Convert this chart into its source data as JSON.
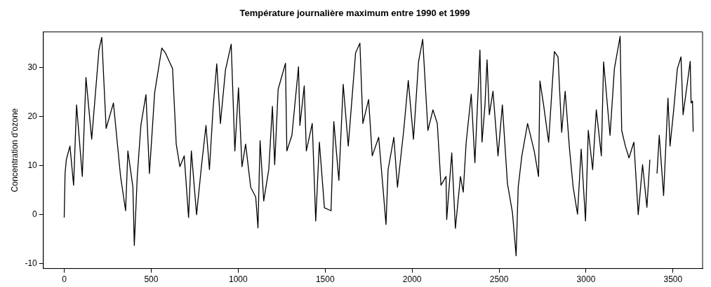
{
  "chart_data": {
    "type": "line",
    "title": "Température journalière maximum entre 1990 et 1999",
    "ylabel": "Concentration d'ozone",
    "x": [
      0,
      5,
      12,
      33,
      54,
      71,
      104,
      125,
      158,
      200,
      216,
      241,
      283,
      324,
      353,
      366,
      395,
      403,
      420,
      441,
      470,
      490,
      520,
      561,
      582,
      623,
      644,
      665,
      690,
      715,
      731,
      761,
      790,
      815,
      835,
      856,
      877,
      898,
      927,
      960,
      981,
      1002,
      1022,
      1043,
      1072,
      1101,
      1114,
      1126,
      1147,
      1176,
      1197,
      1210,
      1230,
      1272,
      1280,
      1309,
      1347,
      1355,
      1380,
      1392,
      1426,
      1446,
      1467,
      1496,
      1534,
      1550,
      1579,
      1604,
      1633,
      1675,
      1700,
      1717,
      1750,
      1771,
      1808,
      1829,
      1850,
      1862,
      1895,
      1916,
      1953,
      1978,
      2008,
      2037,
      2061,
      2091,
      2120,
      2145,
      2166,
      2195,
      2199,
      2228,
      2249,
      2278,
      2294,
      2311,
      2340,
      2361,
      2390,
      2402,
      2419,
      2431,
      2444,
      2465,
      2494,
      2519,
      2548,
      2577,
      2598,
      2610,
      2631,
      2664,
      2702,
      2727,
      2735,
      2756,
      2785,
      2818,
      2839,
      2860,
      2880,
      2905,
      2926,
      2951,
      2972,
      2997,
      3013,
      3038,
      3059,
      3088,
      3101,
      3138,
      3163,
      3196,
      3205,
      3226,
      3247,
      3275,
      3300,
      3325,
      3350,
      3367,
      3390,
      3408,
      3421,
      3446,
      3471,
      3483,
      3504,
      3525,
      3546,
      3558,
      3599,
      3604,
      3612,
      3616
    ],
    "series": [
      {
        "color": "#000000",
        "values": [
          -0.6,
          8.4,
          11.2,
          14,
          6,
          22.4,
          7.8,
          28,
          15.4,
          33.7,
          36.2,
          17.6,
          22.8,
          7.8,
          0.8,
          13,
          5.6,
          -6.3,
          7.8,
          18.3,
          24.5,
          8.4,
          24.9,
          34,
          33,
          29.8,
          14.4,
          9.8,
          12,
          -0.6,
          13,
          0,
          10.2,
          18.2,
          9.2,
          21.8,
          30.8,
          18.6,
          29.5,
          34.8,
          13,
          25.9,
          9.8,
          14.4,
          5.6,
          3.6,
          -2.7,
          15.1,
          2.8,
          9.2,
          22.1,
          10.2,
          25.6,
          30.9,
          13,
          16.2,
          30.2,
          18.2,
          26.3,
          13,
          18.6,
          -1.3,
          14.8,
          1.4,
          0.8,
          19,
          7,
          26.6,
          14,
          33,
          35,
          18.6,
          23.5,
          12,
          15.8,
          7,
          -2,
          9.2,
          15.8,
          5.6,
          17.6,
          27.4,
          15.4,
          31.2,
          35.8,
          17.2,
          21.4,
          18.6,
          6,
          7.8,
          -1,
          12.6,
          -2.8,
          7.8,
          4.6,
          14.8,
          24.6,
          10.6,
          33.6,
          14.8,
          22.4,
          31.6,
          20.4,
          25.2,
          12,
          22.4,
          6.4,
          0.4,
          -8.4,
          5.6,
          12,
          18.6,
          13,
          7.8,
          27.3,
          22.4,
          14.8,
          33.3,
          32.2,
          16.8,
          25.2,
          13.4,
          5.6,
          0.1,
          13.4,
          -1.3,
          17.2,
          9.2,
          21.4,
          12,
          31.2,
          16.2,
          29.8,
          36.4,
          17.2,
          14,
          11.6,
          14.8,
          0,
          10.2,
          1.5,
          11.2,
          null,
          8.4,
          16.2,
          3.9,
          23.8,
          14,
          21.4,
          29.8,
          32.2,
          20.4,
          31.3,
          22.8,
          23.2,
          16.9
        ]
      }
    ],
    "xlim": [
      -120,
      3670
    ],
    "xticks": [
      0,
      500,
      1000,
      1500,
      2000,
      2500,
      3000,
      3500
    ],
    "ylim": [
      -11,
      37.3
    ],
    "yticks": [
      -10,
      0,
      10,
      20,
      30
    ]
  }
}
